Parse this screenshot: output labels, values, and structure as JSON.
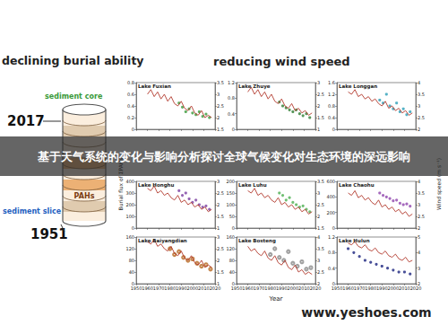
{
  "left_title": "declining burial ability",
  "right_title": "reducing wind speed",
  "diagram": {
    "core_label": "sediment core",
    "top_year": "2017",
    "content_label": "PAHs",
    "slice_label": "sediment slice",
    "bottom_year": "1951"
  },
  "y_label": "Burial flux of ΣPAHs",
  "y2_label": "Wind speed (m s⁻¹)",
  "x_label": "Year",
  "banner": "基于天气系统的变化与影响分析探讨全球气候变化对生态环境的深远影响",
  "watermark": "www.yeshoes.com",
  "chart_data": [
    {
      "type": "line",
      "title": "Lake Fuxian",
      "tick_labels": "y",
      "xlim": [
        1950,
        2020
      ],
      "xticks": [
        1950,
        1960,
        1970,
        1980,
        1990,
        2000,
        2010,
        2020
      ],
      "ylim": [
        0,
        0.8
      ],
      "yticks": [
        0,
        0.2,
        0.4,
        0.6,
        0.8
      ],
      "y2lim": [
        1.5,
        3.5
      ],
      "y2ticks": [
        1.5,
        2,
        2.5,
        3,
        3.5
      ],
      "series": [
        {
          "type": "line",
          "axis": "y2",
          "color": "#b23a2e",
          "x": [
            1960,
            1963,
            1966,
            1969,
            1972,
            1975,
            1978,
            1981,
            1984,
            1987,
            1990,
            1993,
            1996,
            1999,
            2002,
            2005,
            2008,
            2011,
            2014,
            2017
          ],
          "values": [
            3.0,
            3.2,
            2.9,
            3.1,
            2.8,
            3.0,
            2.7,
            2.9,
            2.6,
            2.5,
            2.7,
            2.4,
            2.3,
            2.5,
            2.2,
            2.1,
            2.3,
            2.0,
            2.1,
            2.0
          ]
        },
        {
          "type": "scatter",
          "marker": "circle",
          "color": "#3a9a3a",
          "x": [
            1988,
            1991,
            1994,
            1997,
            2000,
            2003,
            2006,
            2009,
            2012,
            2015
          ],
          "values": [
            0.45,
            0.38,
            0.3,
            0.35,
            0.28,
            0.25,
            0.3,
            0.22,
            0.26,
            0.2
          ]
        }
      ]
    },
    {
      "type": "line",
      "title": "Lake Zhuye",
      "tick_labels": "y",
      "xlim": [
        1950,
        2020
      ],
      "xticks": [
        1950,
        1960,
        1970,
        1980,
        1990,
        2000,
        2010,
        2020
      ],
      "ylim": [
        0,
        1.2
      ],
      "yticks": [
        0,
        0.4,
        0.8,
        1.2
      ],
      "y2lim": [
        1,
        3
      ],
      "y2ticks": [
        1,
        1.5,
        2,
        2.5,
        3
      ],
      "series": [
        {
          "type": "line",
          "axis": "y2",
          "color": "#b23a2e",
          "x": [
            1960,
            1963,
            1966,
            1969,
            1972,
            1975,
            1978,
            1981,
            1984,
            1987,
            1990,
            1993,
            1996,
            1999,
            2002,
            2005,
            2008,
            2011,
            2014,
            2017
          ],
          "values": [
            2.6,
            2.8,
            2.5,
            2.7,
            2.4,
            2.6,
            2.3,
            2.5,
            2.2,
            2.1,
            2.3,
            2.0,
            1.9,
            2.1,
            1.8,
            1.9,
            1.7,
            1.8,
            1.6,
            1.7
          ]
        },
        {
          "type": "scatter",
          "marker": "circle",
          "color": "#2e7d32",
          "x": [
            1988,
            1991,
            1994,
            1997,
            2000,
            2003,
            2006,
            2009,
            2012,
            2015
          ],
          "values": [
            0.7,
            0.6,
            0.55,
            0.5,
            0.45,
            0.5,
            0.4,
            0.35,
            0.4,
            0.3
          ]
        }
      ]
    },
    {
      "type": "line",
      "title": "Lake Longgan",
      "tick_labels": "y",
      "xlim": [
        1950,
        2020
      ],
      "xticks": [
        1950,
        1960,
        1970,
        1980,
        1990,
        2000,
        2010,
        2020
      ],
      "ylim": [
        0,
        1.6
      ],
      "yticks": [
        0,
        0.4,
        0.8,
        1.2,
        1.6
      ],
      "y2lim": [
        2,
        4
      ],
      "y2ticks": [
        2,
        2.5,
        3,
        3.5,
        4
      ],
      "series": [
        {
          "type": "line",
          "axis": "y2",
          "color": "#b23a2e",
          "x": [
            1960,
            1963,
            1966,
            1969,
            1972,
            1975,
            1978,
            1981,
            1984,
            1987,
            1990,
            1993,
            1996,
            1999,
            2002,
            2005,
            2008,
            2011,
            2014,
            2017
          ],
          "values": [
            3.6,
            3.5,
            3.7,
            3.4,
            3.5,
            3.3,
            3.4,
            3.2,
            3.3,
            3.1,
            3.0,
            3.2,
            2.9,
            3.0,
            2.8,
            2.9,
            2.7,
            2.8,
            2.6,
            2.7
          ]
        },
        {
          "type": "scatter",
          "marker": "circle",
          "color": "#2a9fb8",
          "x": [
            1988,
            1991,
            1994,
            1997,
            2000,
            2003,
            2006,
            2009,
            2012,
            2015
          ],
          "values": [
            1.0,
            0.9,
            1.2,
            0.8,
            0.7,
            0.9,
            0.6,
            0.7,
            0.5,
            0.6
          ]
        }
      ]
    },
    {
      "type": "line",
      "title": "Lake Honghu",
      "tick_labels": "y",
      "xlim": [
        1950,
        2020
      ],
      "xticks": [
        1950,
        1960,
        1970,
        1980,
        1990,
        2000,
        2010,
        2020
      ],
      "ylim": [
        0,
        400
      ],
      "yticks": [
        0,
        100,
        200,
        300,
        400
      ],
      "y2lim": [
        1,
        3
      ],
      "y2ticks": [
        1,
        1.5,
        2,
        2.5,
        3
      ],
      "series": [
        {
          "type": "line",
          "axis": "y2",
          "color": "#b23a2e",
          "x": [
            1960,
            1963,
            1966,
            1969,
            1972,
            1975,
            1978,
            1981,
            1984,
            1987,
            1990,
            1993,
            1996,
            1999,
            2002,
            2005,
            2008,
            2011,
            2014,
            2017
          ],
          "values": [
            2.7,
            2.6,
            2.8,
            2.5,
            2.6,
            2.4,
            2.5,
            2.3,
            2.2,
            2.4,
            2.1,
            2.2,
            2.0,
            2.1,
            1.9,
            2.0,
            1.8,
            1.9,
            1.7,
            1.8
          ]
        },
        {
          "type": "scatter",
          "marker": "circle",
          "color": "#7b3fa0",
          "x": [
            1988,
            1991,
            1994,
            1997,
            2000,
            2003,
            2006,
            2009,
            2012,
            2015
          ],
          "values": [
            320,
            280,
            300,
            250,
            220,
            240,
            200,
            180,
            190,
            160
          ]
        }
      ]
    },
    {
      "type": "line",
      "title": "Lake Luhu",
      "tick_labels": "y",
      "xlim": [
        1950,
        2020
      ],
      "xticks": [
        1950,
        1960,
        1970,
        1980,
        1990,
        2000,
        2010,
        2020
      ],
      "ylim": [
        0,
        200
      ],
      "yticks": [
        0,
        50,
        100,
        150,
        200
      ],
      "y2lim": [
        1.5,
        3.5
      ],
      "y2ticks": [
        1.5,
        2,
        2.5,
        3,
        3.5
      ],
      "series": [
        {
          "type": "line",
          "axis": "y2",
          "color": "#b23a2e",
          "x": [
            1960,
            1963,
            1966,
            1969,
            1972,
            1975,
            1978,
            1981,
            1984,
            1987,
            1990,
            1993,
            1996,
            1999,
            2002,
            2005,
            2008,
            2011,
            2014,
            2017
          ],
          "values": [
            3.1,
            3.0,
            3.2,
            2.9,
            3.0,
            2.8,
            2.9,
            2.7,
            2.6,
            2.8,
            2.5,
            2.6,
            2.4,
            2.5,
            2.3,
            2.4,
            2.2,
            2.3,
            2.1,
            2.2
          ]
        },
        {
          "type": "scatter",
          "marker": "circle",
          "color": "#4caf50",
          "x": [
            1988,
            1991,
            1994,
            1997,
            2000,
            2003,
            2006,
            2009,
            2012,
            2015
          ],
          "values": [
            150,
            140,
            120,
            130,
            110,
            100,
            90,
            95,
            80,
            70
          ]
        }
      ]
    },
    {
      "type": "line",
      "title": "Lake Chaohu",
      "tick_labels": "y",
      "xlim": [
        1950,
        2020
      ],
      "xticks": [
        1950,
        1960,
        1970,
        1980,
        1990,
        2000,
        2010,
        2020
      ],
      "ylim": [
        0,
        600
      ],
      "yticks": [
        0,
        200,
        400,
        600
      ],
      "y2lim": [
        2,
        4
      ],
      "y2ticks": [
        2,
        2.5,
        3,
        3.5,
        4
      ],
      "series": [
        {
          "type": "line",
          "axis": "y2",
          "color": "#b23a2e",
          "x": [
            1960,
            1963,
            1966,
            1969,
            1972,
            1975,
            1978,
            1981,
            1984,
            1987,
            1990,
            1993,
            1996,
            1999,
            2002,
            2005,
            2008,
            2011,
            2014,
            2017
          ],
          "values": [
            3.5,
            3.4,
            3.6,
            3.3,
            3.4,
            3.2,
            3.3,
            3.1,
            3.0,
            3.2,
            2.9,
            3.0,
            2.8,
            2.9,
            2.7,
            2.8,
            2.6,
            2.7,
            2.5,
            2.6
          ]
        },
        {
          "type": "scatter",
          "marker": "circle",
          "color": "#8e44ad",
          "x": [
            1988,
            1991,
            1994,
            1997,
            2000,
            2003,
            2006,
            2009,
            2012,
            2015
          ],
          "values": [
            450,
            420,
            400,
            380,
            350,
            360,
            320,
            300,
            310,
            280
          ]
        }
      ]
    },
    {
      "type": "line",
      "title": "Lake Baiyangdian",
      "xlim": [
        1950,
        2020
      ],
      "xticks": [
        1950,
        1960,
        1970,
        1980,
        1990,
        2000,
        2010,
        2020
      ],
      "ylim": [
        0,
        160
      ],
      "yticks": [
        0,
        40,
        80,
        120,
        160
      ],
      "y2lim": [
        1,
        3
      ],
      "y2ticks": [
        1,
        1.5,
        2,
        2.5,
        3
      ],
      "series": [
        {
          "type": "line",
          "axis": "y2",
          "color": "#b23a2e",
          "x": [
            1960,
            1963,
            1966,
            1969,
            1972,
            1975,
            1978,
            1981,
            1984,
            1987,
            1990,
            1993,
            1996,
            1999,
            2002,
            2005,
            2008,
            2011,
            2014,
            2017
          ],
          "values": [
            2.8,
            2.7,
            2.9,
            2.6,
            2.7,
            2.5,
            2.4,
            2.6,
            2.3,
            2.2,
            2.4,
            2.1,
            2.0,
            2.2,
            1.9,
            1.8,
            2.0,
            1.7,
            1.8,
            1.7
          ]
        },
        {
          "type": "scatter",
          "marker": "open_circle",
          "color": "#b5651d",
          "x": [
            1980,
            1984,
            1988,
            1992,
            1996,
            2000,
            2004,
            2008,
            2012,
            2016
          ],
          "values": [
            120,
            100,
            110,
            90,
            80,
            85,
            70,
            60,
            65,
            50
          ]
        }
      ]
    },
    {
      "type": "line",
      "title": "Lake Bosteng",
      "xlim": [
        1950,
        2020
      ],
      "xticks": [
        1950,
        1960,
        1970,
        1980,
        1990,
        2000,
        2010,
        2020
      ],
      "ylim": [
        0,
        160
      ],
      "yticks": [
        0,
        40,
        80,
        120,
        160
      ],
      "y2lim": [
        2,
        4
      ],
      "y2ticks": [
        2,
        2.5,
        3,
        3.5,
        4
      ],
      "series": [
        {
          "type": "line",
          "axis": "y2",
          "color": "#b23a2e",
          "x": [
            1960,
            1963,
            1966,
            1969,
            1972,
            1975,
            1978,
            1981,
            1984,
            1987,
            1990,
            1993,
            1996,
            1999,
            2002,
            2005,
            2008,
            2011,
            2014,
            2017
          ],
          "values": [
            3.6,
            3.4,
            3.5,
            3.3,
            3.2,
            3.4,
            3.1,
            3.0,
            3.2,
            2.9,
            2.8,
            3.0,
            2.7,
            2.6,
            2.8,
            2.5,
            2.6,
            2.4,
            2.5,
            2.4
          ]
        },
        {
          "type": "scatter",
          "marker": "open_circle",
          "color": "#888888",
          "x": [
            1980,
            1984,
            1988,
            1992,
            1996,
            2000,
            2004,
            2008,
            2012,
            2016
          ],
          "values": [
            100,
            120,
            90,
            80,
            110,
            70,
            60,
            75,
            50,
            55
          ]
        }
      ]
    },
    {
      "type": "line",
      "title": "Lake Hulun",
      "xlim": [
        1950,
        2020
      ],
      "xticks": [
        1950,
        1960,
        1970,
        1980,
        1990,
        2000,
        2010,
        2020
      ],
      "ylim": [
        0,
        1.2
      ],
      "yticks": [
        0,
        0.4,
        0.8,
        1.2
      ],
      "y2lim": [
        2,
        5
      ],
      "y2ticks": [
        2,
        3,
        4,
        5
      ],
      "series": [
        {
          "type": "line",
          "axis": "y2",
          "color": "#b23a2e",
          "x": [
            1960,
            1963,
            1966,
            1969,
            1972,
            1975,
            1978,
            1981,
            1984,
            1987,
            1990,
            1993,
            1996,
            1999,
            2002,
            2005,
            2008,
            2011,
            2014,
            2017
          ],
          "values": [
            4.6,
            4.5,
            4.7,
            4.4,
            4.3,
            4.5,
            4.2,
            4.1,
            4.3,
            4.0,
            3.9,
            4.1,
            3.8,
            3.7,
            3.9,
            3.6,
            3.5,
            3.7,
            3.4,
            3.5
          ]
        },
        {
          "type": "scatter",
          "marker": "circle",
          "color": "#1a237e",
          "x": [
            1960,
            1965,
            1970,
            1975,
            1980,
            1985,
            1990,
            1995,
            2000,
            2005,
            2010,
            2015
          ],
          "values": [
            0.9,
            0.8,
            0.7,
            0.6,
            0.55,
            0.5,
            0.45,
            0.4,
            0.35,
            0.3,
            0.3,
            0.25
          ]
        }
      ]
    }
  ]
}
